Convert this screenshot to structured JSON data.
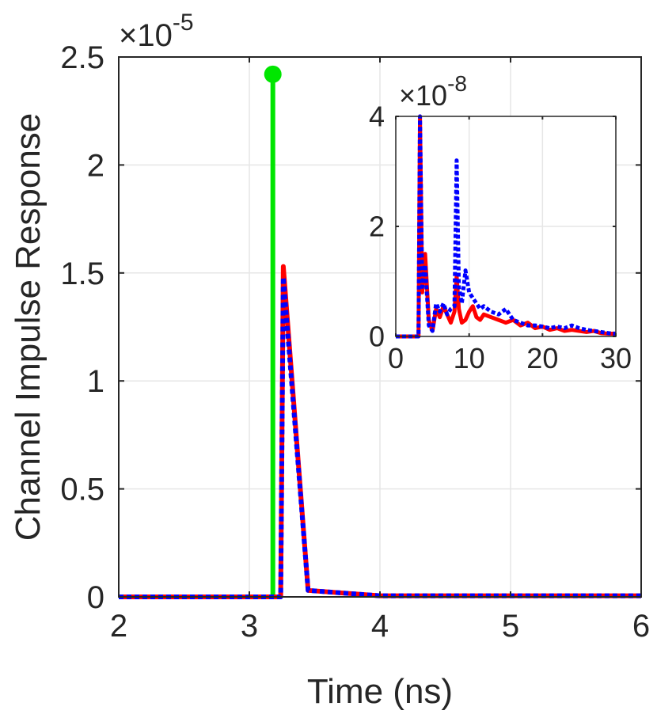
{
  "chart_data": [
    {
      "id": "main",
      "type": "line",
      "title": "",
      "xlabel": "Time (ns)",
      "ylabel": "Channel Impulse Response",
      "xlim": [
        2,
        6
      ],
      "ylim": [
        0,
        2.5
      ],
      "y_exponent_label": "×10",
      "y_exponent_power": "-5",
      "grid": true,
      "xticks": [
        2,
        3,
        4,
        5,
        6
      ],
      "xtick_labels": [
        "2",
        "3",
        "4",
        "5",
        "6"
      ],
      "yticks": [
        0,
        0.5,
        1,
        1.5,
        2,
        2.5
      ],
      "ytick_labels": [
        "0",
        "0.5",
        "1",
        "1.5",
        "2",
        "2.5"
      ],
      "series": [
        {
          "name": "LOS stem",
          "style": "stem",
          "color": "#00e600",
          "x": [
            3.18
          ],
          "y": [
            2.42
          ]
        },
        {
          "name": "Red solid",
          "style": "solid",
          "color": "#ff0000",
          "x": [
            2.0,
            3.24,
            3.26,
            3.45,
            4.0,
            6.0
          ],
          "y": [
            0.0,
            0.0,
            1.53,
            0.03,
            0.005,
            0.005
          ]
        },
        {
          "name": "Blue dotted",
          "style": "dotted",
          "color": "#0000ff",
          "x": [
            2.0,
            3.24,
            3.26,
            3.45,
            4.0,
            6.0
          ],
          "y": [
            0.0,
            0.0,
            1.48,
            0.03,
            0.005,
            0.005
          ]
        }
      ]
    },
    {
      "id": "inset",
      "type": "line",
      "title": "",
      "xlabel": "",
      "ylabel": "",
      "xlim": [
        0,
        30
      ],
      "ylim": [
        0,
        4
      ],
      "y_exponent_label": "×10",
      "y_exponent_power": "-8",
      "grid": true,
      "xticks": [
        0,
        10,
        20,
        30
      ],
      "xtick_labels": [
        "0",
        "10",
        "20",
        "30"
      ],
      "yticks": [
        0,
        2,
        4
      ],
      "ytick_labels": [
        "0",
        "2",
        "4"
      ],
      "series": [
        {
          "name": "Red solid",
          "style": "solid",
          "color": "#ff0000",
          "x": [
            0,
            3.1,
            3.3,
            3.6,
            4.0,
            4.5,
            5.0,
            5.5,
            6.0,
            6.5,
            7.0,
            7.5,
            8.0,
            8.3,
            8.6,
            9.0,
            9.5,
            10.0,
            10.5,
            11.0,
            11.5,
            12.0,
            13.0,
            14.0,
            15.0,
            16.0,
            17.0,
            18.0,
            19.0,
            20.0,
            21.0,
            22.0,
            23.0,
            24.0,
            25.0,
            26.0,
            27.0,
            28.0,
            29.0,
            30.0
          ],
          "y": [
            0,
            0,
            4.0,
            0.8,
            1.5,
            0.3,
            0.1,
            0.5,
            0.35,
            0.55,
            0.4,
            0.25,
            0.45,
            1.1,
            0.5,
            0.25,
            0.3,
            0.45,
            0.55,
            0.35,
            0.3,
            0.4,
            0.35,
            0.3,
            0.25,
            0.3,
            0.2,
            0.25,
            0.15,
            0.18,
            0.12,
            0.15,
            0.1,
            0.12,
            0.1,
            0.08,
            0.1,
            0.06,
            0.05,
            0.05
          ]
        },
        {
          "name": "Blue dotted",
          "style": "dotted",
          "color": "#0000ff",
          "x": [
            0,
            3.1,
            3.3,
            3.6,
            4.0,
            4.5,
            5.0,
            5.5,
            6.0,
            6.5,
            7.0,
            7.5,
            8.0,
            8.3,
            8.6,
            9.0,
            9.5,
            10.0,
            10.5,
            11.0,
            11.5,
            12.0,
            13.0,
            14.0,
            15.0,
            16.0,
            17.0,
            18.0,
            19.0,
            20.0,
            21.0,
            22.0,
            23.0,
            24.0,
            25.0,
            26.0,
            27.0,
            28.0,
            29.0,
            30.0
          ],
          "y": [
            0,
            0,
            4.0,
            0.9,
            1.3,
            0.2,
            0.1,
            0.6,
            0.45,
            0.6,
            0.4,
            0.5,
            0.55,
            3.2,
            0.9,
            0.6,
            1.2,
            0.8,
            0.7,
            0.6,
            0.5,
            0.55,
            0.45,
            0.4,
            0.5,
            0.3,
            0.25,
            0.2,
            0.2,
            0.18,
            0.15,
            0.18,
            0.15,
            0.2,
            0.15,
            0.12,
            0.1,
            0.08,
            0.06,
            0.05
          ]
        }
      ]
    }
  ]
}
